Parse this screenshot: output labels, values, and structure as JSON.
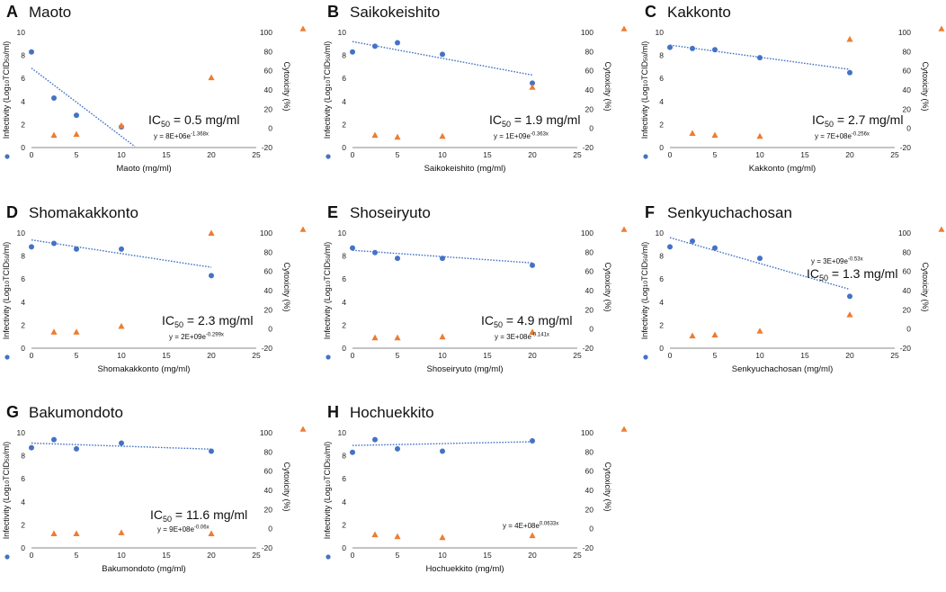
{
  "colors": {
    "infectivity": "#4472c4",
    "cytotoxicity": "#ed7d31",
    "trend": "#4472c4",
    "axis": "#888888"
  },
  "axis_labels": {
    "left": [
      "Infectivity (Log",
      "10",
      "TCID",
      "50",
      "/ml)"
    ],
    "right": "Cytoxicity (%)"
  },
  "icons": {
    "left_marker": "circle-marker-icon",
    "right_marker": "triangle-marker-icon"
  },
  "chart_data": [
    {
      "letter": "A",
      "title": "Maoto",
      "type": "scatter",
      "xlabel": "Maoto (mg/ml)",
      "xlim": [
        0,
        25
      ],
      "xticks": [
        "0",
        "5",
        "10",
        "15",
        "20",
        "25"
      ],
      "ylim": [
        0,
        10
      ],
      "yticks": [
        "0",
        "2",
        "4",
        "6",
        "8",
        "10"
      ],
      "y2lim": [
        -20,
        100
      ],
      "y2ticks": [
        "-20",
        "0",
        "20",
        "40",
        "60",
        "80",
        "100"
      ],
      "series": [
        {
          "name": "Infectivity",
          "axis": "left",
          "marker": "circle",
          "x": [
            0,
            2.5,
            5,
            10
          ],
          "y": [
            8.3,
            4.3,
            2.8,
            1.8
          ]
        },
        {
          "name": "Cytotoxicity",
          "axis": "right",
          "marker": "triangle",
          "x": [
            2.5,
            5,
            10,
            20
          ],
          "y": [
            -7,
            -6,
            3,
            53
          ]
        }
      ],
      "trend": {
        "a": 6.9,
        "k": -0.15,
        "x_end": 11.5
      },
      "ic50": {
        "prefix": "IC",
        "sub": "50",
        "value": " = 0.5 mg/ml"
      },
      "equation": {
        "base": "y = 8E+06e",
        "exp": "-1.368x"
      }
    },
    {
      "letter": "B",
      "title": "Saikokeishito",
      "type": "scatter",
      "xlabel": "Saikokeishito (mg/ml)",
      "xlim": [
        0,
        25
      ],
      "xticks": [
        "0",
        "5",
        "10",
        "15",
        "20",
        "25"
      ],
      "ylim": [
        0,
        10
      ],
      "yticks": [
        "0",
        "2",
        "4",
        "6",
        "8",
        "10"
      ],
      "y2lim": [
        -20,
        100
      ],
      "y2ticks": [
        "-20",
        "0",
        "20",
        "40",
        "60",
        "80",
        "100"
      ],
      "series": [
        {
          "name": "Infectivity",
          "axis": "left",
          "marker": "circle",
          "x": [
            0,
            2.5,
            5,
            10,
            20
          ],
          "y": [
            8.3,
            8.8,
            9.1,
            8.1,
            5.6
          ]
        },
        {
          "name": "Cytotoxicity",
          "axis": "right",
          "marker": "triangle",
          "x": [
            2.5,
            5,
            10,
            20
          ],
          "y": [
            -7,
            -9,
            -8,
            43
          ]
        }
      ],
      "trend": {
        "a": 9.2,
        "k": -0.022,
        "x_end": 20
      },
      "ic50": {
        "prefix": "IC",
        "sub": "50",
        "value": " = 1.9 mg/ml"
      },
      "equation": {
        "base": "y = 1E+09e",
        "exp": "-0.363x"
      }
    },
    {
      "letter": "C",
      "title": "Kakkonto",
      "type": "scatter",
      "xlabel": "Kakkonto (mg/ml)",
      "xlim": [
        0,
        25
      ],
      "xticks": [
        "0",
        "5",
        "10",
        "15",
        "20",
        "25"
      ],
      "ylim": [
        0,
        10
      ],
      "yticks": [
        "0",
        "2",
        "4",
        "6",
        "8",
        "10"
      ],
      "y2lim": [
        -20,
        100
      ],
      "y2ticks": [
        "-20",
        "0",
        "20",
        "40",
        "60",
        "80",
        "100"
      ],
      "series": [
        {
          "name": "Infectivity",
          "axis": "left",
          "marker": "circle",
          "x": [
            0,
            2.5,
            5,
            10,
            20
          ],
          "y": [
            8.7,
            8.6,
            8.5,
            7.8,
            6.5
          ]
        },
        {
          "name": "Cytotoxicity",
          "axis": "right",
          "marker": "triangle",
          "x": [
            2.5,
            5,
            10,
            20
          ],
          "y": [
            -5,
            -7,
            -8,
            93
          ]
        }
      ],
      "trend": {
        "a": 8.9,
        "k": -0.016,
        "x_end": 20
      },
      "ic50": {
        "prefix": "IC",
        "sub": "50",
        "value": " = 2.7 mg/ml"
      },
      "equation": {
        "base": "y = 7E+08e",
        "exp": "-0.256x"
      }
    },
    {
      "letter": "D",
      "title": "Shomakakkonto",
      "type": "scatter",
      "xlabel": "Shomakakkonto (mg/ml)",
      "xlim": [
        0,
        25
      ],
      "xticks": [
        "0",
        "5",
        "10",
        "15",
        "20",
        "25"
      ],
      "ylim": [
        0,
        10
      ],
      "yticks": [
        "0",
        "2",
        "4",
        "6",
        "8",
        "10"
      ],
      "y2lim": [
        -20,
        100
      ],
      "y2ticks": [
        "-20",
        "0",
        "20",
        "40",
        "60",
        "80",
        "100"
      ],
      "series": [
        {
          "name": "Infectivity",
          "axis": "left",
          "marker": "circle",
          "x": [
            0,
            2.5,
            5,
            10,
            20
          ],
          "y": [
            8.8,
            9.1,
            8.6,
            8.6,
            6.3
          ]
        },
        {
          "name": "Cytotoxicity",
          "axis": "right",
          "marker": "triangle",
          "x": [
            2.5,
            5,
            10,
            20
          ],
          "y": [
            -3,
            -3,
            3,
            100
          ]
        }
      ],
      "trend": {
        "a": 9.4,
        "k": -0.018,
        "x_end": 20
      },
      "ic50": {
        "prefix": "IC",
        "sub": "50",
        "value": " = 2.3 mg/ml"
      },
      "equation": {
        "base": "y = 2E+09e",
        "exp": "-0.299x"
      }
    },
    {
      "letter": "E",
      "title": "Shoseiryuto",
      "type": "scatter",
      "xlabel": "Shoseiryuto (mg/ml)",
      "xlim": [
        0,
        25
      ],
      "xticks": [
        "0",
        "5",
        "10",
        "15",
        "20",
        "25"
      ],
      "ylim": [
        0,
        10
      ],
      "yticks": [
        "0",
        "2",
        "4",
        "6",
        "8",
        "10"
      ],
      "y2lim": [
        -20,
        100
      ],
      "y2ticks": [
        "-20",
        "0",
        "20",
        "40",
        "60",
        "80",
        "100"
      ],
      "series": [
        {
          "name": "Infectivity",
          "axis": "left",
          "marker": "circle",
          "x": [
            0,
            2.5,
            5,
            10,
            20
          ],
          "y": [
            8.7,
            8.3,
            7.8,
            7.8,
            7.2
          ]
        },
        {
          "name": "Cytotoxicity",
          "axis": "right",
          "marker": "triangle",
          "x": [
            2.5,
            5,
            10,
            20
          ],
          "y": [
            -9,
            -9,
            -8,
            -3
          ]
        }
      ],
      "trend": {
        "a": 8.5,
        "k": -0.0083,
        "x_end": 20
      },
      "ic50": {
        "prefix": "IC",
        "sub": "50",
        "value": " = 4.9 mg/ml"
      },
      "equation": {
        "base": "y = 3E+08e",
        "exp": "-0.141x"
      }
    },
    {
      "letter": "F",
      "title": "Senkyuchachosan",
      "type": "scatter",
      "xlabel": "Senkyuchachosan (mg/ml)",
      "xlim": [
        0,
        25
      ],
      "xticks": [
        "0",
        "5",
        "10",
        "15",
        "20",
        "25"
      ],
      "ylim": [
        0,
        10
      ],
      "yticks": [
        "0",
        "2",
        "4",
        "6",
        "8",
        "10"
      ],
      "y2lim": [
        -20,
        100
      ],
      "y2ticks": [
        "-20",
        "0",
        "20",
        "40",
        "60",
        "80",
        "100"
      ],
      "series": [
        {
          "name": "Infectivity",
          "axis": "left",
          "marker": "circle",
          "x": [
            0,
            2.5,
            5,
            10,
            20
          ],
          "y": [
            8.8,
            9.3,
            8.7,
            7.8,
            4.5
          ]
        },
        {
          "name": "Cytotoxicity",
          "axis": "right",
          "marker": "triangle",
          "x": [
            2.5,
            5,
            10,
            20
          ],
          "y": [
            -7,
            -6,
            -2,
            15
          ]
        }
      ],
      "trend": {
        "a": 9.6,
        "k": -0.034,
        "x_end": 20
      },
      "ic50": {
        "prefix": "IC",
        "sub": "50",
        "value": " = 1.3 mg/ml"
      },
      "equation": {
        "base": "y = 3E+09e",
        "exp": "-0.53x"
      }
    },
    {
      "letter": "G",
      "title": "Bakumondoto",
      "type": "scatter",
      "xlabel": "Bakumondoto (mg/ml)",
      "xlim": [
        0,
        25
      ],
      "xticks": [
        "0",
        "5",
        "10",
        "15",
        "20",
        "25"
      ],
      "ylim": [
        0,
        10
      ],
      "yticks": [
        "0",
        "2",
        "4",
        "6",
        "8",
        "10"
      ],
      "y2lim": [
        -20,
        100
      ],
      "y2ticks": [
        "-20",
        "0",
        "20",
        "40",
        "60",
        "80",
        "100"
      ],
      "series": [
        {
          "name": "Infectivity",
          "axis": "left",
          "marker": "circle",
          "x": [
            0,
            2.5,
            5,
            10,
            20
          ],
          "y": [
            8.7,
            9.4,
            8.6,
            9.1,
            8.4
          ]
        },
        {
          "name": "Cytotoxicity",
          "axis": "right",
          "marker": "triangle",
          "x": [
            2.5,
            5,
            10,
            20
          ],
          "y": [
            -5,
            -5,
            -4,
            -5
          ]
        }
      ],
      "trend": {
        "a": 9.1,
        "k": -0.004,
        "x_end": 20
      },
      "ic50": {
        "prefix": "IC",
        "sub": "50",
        "value": " = 11.6 mg/ml"
      },
      "equation": {
        "base": "y = 9E+08e",
        "exp": "-0.06x"
      }
    },
    {
      "letter": "H",
      "title": "Hochuekkito",
      "type": "scatter",
      "xlabel": "Hochuekkito (mg/ml)",
      "xlim": [
        0,
        25
      ],
      "xticks": [
        "0",
        "5",
        "10",
        "15",
        "20",
        "25"
      ],
      "ylim": [
        0,
        10
      ],
      "yticks": [
        "0",
        "2",
        "4",
        "6",
        "8",
        "10"
      ],
      "y2lim": [
        -20,
        100
      ],
      "y2ticks": [
        "-20",
        "0",
        "20",
        "40",
        "60",
        "80",
        "100"
      ],
      "series": [
        {
          "name": "Infectivity",
          "axis": "left",
          "marker": "circle",
          "x": [
            0,
            2.5,
            5,
            10,
            20
          ],
          "y": [
            8.3,
            9.4,
            8.6,
            8.4,
            9.3
          ]
        },
        {
          "name": "Cytotoxicity",
          "axis": "right",
          "marker": "triangle",
          "x": [
            2.5,
            5,
            10,
            20
          ],
          "y": [
            -6,
            -8,
            -9,
            -7
          ]
        }
      ],
      "trend": {
        "a": 8.9,
        "k": 0.0024,
        "x_end": 20
      },
      "ic50": null,
      "equation": {
        "base": "y = 4E+08e",
        "exp": "0.0633x"
      }
    }
  ]
}
